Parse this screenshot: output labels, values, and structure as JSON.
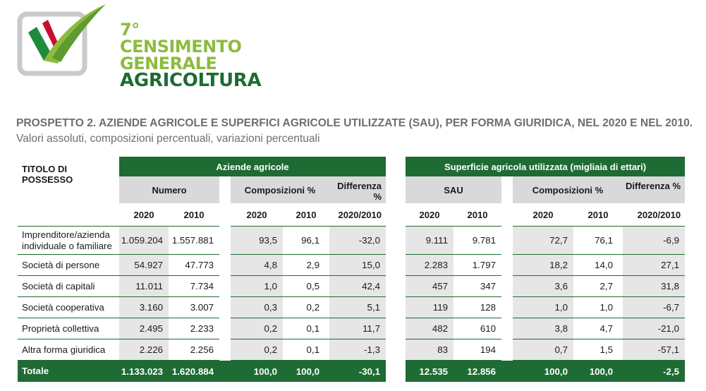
{
  "logo": {
    "line1": "7° CENSIMENTO",
    "line2": "GENERALE",
    "line3": "AGRICOLTURA",
    "colors": {
      "light_green": "#8dbb3f",
      "dark_green": "#1e6b33",
      "red": "#c8102e"
    }
  },
  "title": {
    "bold": "PROSPETTO 2. AZIENDE AGRICOLE E SUPERFICI AGRICOLE UTILIZZATE (SAU), PER FORMA GIURIDICA, NEL 2020 E NEL 2010.",
    "normal": " Valori assoluti, composizioni percentuali, variazioni percentuali"
  },
  "table": {
    "row_header": "TITOLO DI POSSESSO",
    "group_aziende": "Aziende agricole",
    "group_sau": "Superficie agricola utilizzata (migliaia di ettari)",
    "sub_numero": "Numero",
    "sub_comp_a": "Composizioni %",
    "sub_diff_a": "Differenza %",
    "sub_sau": "SAU",
    "sub_comp_s": "Composizioni %",
    "sub_diff_s": "Differenza %",
    "y2020": "2020",
    "y2010": "2010",
    "ydiff": "2020/2010",
    "rows": [
      {
        "label": "Imprenditore/azienda individuale o familiare",
        "n20": "1.059.204",
        "n10": "1.557.881",
        "c20": "93,5",
        "c10": "96,1",
        "d": "-32,0",
        "s20": "9.111",
        "s10": "9.781",
        "sc20": "72,7",
        "sc10": "76,1",
        "sd": "-6,9"
      },
      {
        "label": "Società di persone",
        "n20": "54.927",
        "n10": "47.773",
        "c20": "4,8",
        "c10": "2,9",
        "d": "15,0",
        "s20": "2.283",
        "s10": "1.797",
        "sc20": "18,2",
        "sc10": "14,0",
        "sd": "27,1"
      },
      {
        "label": "Società di capitali",
        "n20": "11.011",
        "n10": "7.734",
        "c20": "1,0",
        "c10": "0,5",
        "d": "42,4",
        "s20": "457",
        "s10": "347",
        "sc20": "3,6",
        "sc10": "2,7",
        "sd": "31,8"
      },
      {
        "label": "Società cooperativa",
        "n20": "3.160",
        "n10": "3.007",
        "c20": "0,3",
        "c10": "0,2",
        "d": "5,1",
        "s20": "119",
        "s10": "128",
        "sc20": "1,0",
        "sc10": "1,0",
        "sd": "-6,7"
      },
      {
        "label": "Proprietà collettiva",
        "n20": "2.495",
        "n10": "2.233",
        "c20": "0,2",
        "c10": "0,1",
        "d": "11,7",
        "s20": "482",
        "s10": "610",
        "sc20": "3,8",
        "sc10": "4,7",
        "sd": "-21,0"
      },
      {
        "label": "Altra forma giuridica",
        "n20": "2.226",
        "n10": "2.256",
        "c20": "0,2",
        "c10": "0,1",
        "d": "-1,3",
        "s20": "83",
        "s10": "194",
        "sc20": "0,7",
        "sc10": "1,5",
        "sd": "-57,1"
      }
    ],
    "total": {
      "label": "Totale",
      "n20": "1.133.023",
      "n10": "1.620.884",
      "c20": "100,0",
      "c10": "100,0",
      "d": "-30,1",
      "s20": "12.535",
      "s10": "12.856",
      "sc20": "100,0",
      "sc10": "100,0",
      "sd": "-2,5"
    }
  }
}
